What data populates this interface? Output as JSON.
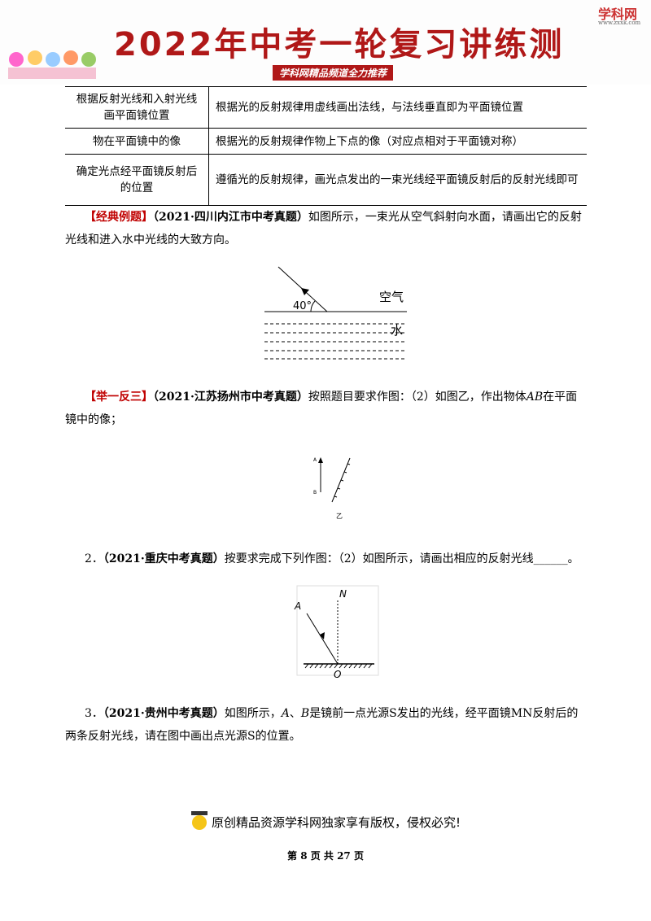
{
  "header": {
    "title": "2022年中考一轮复习讲练测",
    "subtitle": "学科网精品频道全力推荐",
    "logo": "学科网",
    "logo_url": "www.zxxk.com"
  },
  "table": {
    "rows": [
      [
        "根据反射光线和入射光线画平面镜位置",
        "根据光的反射规律用虚线画出法线，与法线垂直即为平面镜位置"
      ],
      [
        "物在平面镜中的像",
        "根据光的反射规律作物上下点的像（对应点相对于平面镜对称）"
      ],
      [
        "确定光点经平面镜反射后的位置",
        "遵循光的反射规律，画光点发出的一束光线经平面镜反射后的反射光线即可"
      ]
    ]
  },
  "example": {
    "tag": "【经典例题】",
    "source": "（2021·四川内江市中考真题）",
    "text": "如图所示，一束光从空气斜射向水面，请画出它的反射光线和进入水中光线的大致方向。",
    "figure": {
      "angle": "40°",
      "air": "空气",
      "water": "水"
    }
  },
  "practice": {
    "tag": "【举一反三】",
    "source": "（2021·江苏扬州市中考真题）",
    "text_before": "按照题目要求作图：（2）如图乙，作出物体",
    "object": "AB",
    "text_after": "在平面镜中的像；",
    "figure": {
      "a": "A",
      "b": "B",
      "caption": "乙"
    }
  },
  "q2": {
    "number": "2．",
    "source": "（2021·重庆中考真题）",
    "text": "按要求完成下列作图：（2）如图所示，请画出相应的反射光线______。",
    "figure": {
      "n": "N",
      "a": "A",
      "o": "O"
    }
  },
  "q3": {
    "number": "3．",
    "source": "（2021·贵州中考真题）",
    "t1": "如图所示，",
    "a": "A",
    "t2": "、",
    "b": "B",
    "t3": "是镜前一点光源S发出的光线，经平面镜MN反射后的两条反射光线，请在图中画出点光源S的位置。"
  },
  "footer": {
    "copyright": "原创精品资源学科网独家享有版权，侵权必究!",
    "page": "第 8 页 共 27 页"
  }
}
